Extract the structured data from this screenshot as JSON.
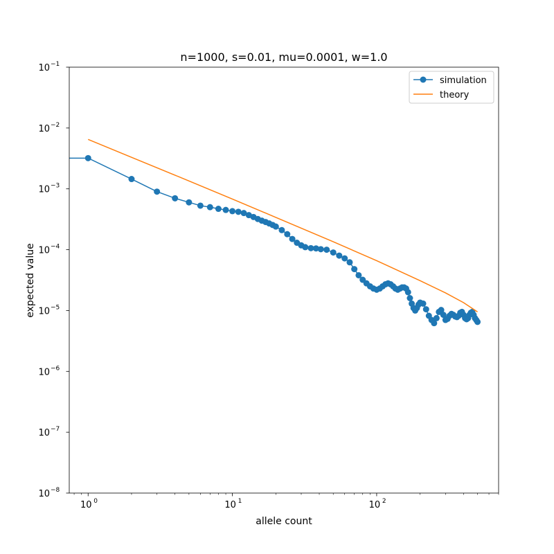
{
  "chart_data": {
    "type": "line",
    "title": "n=1000, s=0.01, mu=0.0001, w=1.0",
    "xlabel": "allele count",
    "ylabel": "expected value",
    "xscale": "log",
    "yscale": "log",
    "xlim": [
      0.74,
      700
    ],
    "ylim": [
      1e-08,
      0.1
    ],
    "xticks": [
      {
        "value": 1,
        "base": "10",
        "exp": "0"
      },
      {
        "value": 10,
        "base": "10",
        "exp": "1"
      },
      {
        "value": 100,
        "base": "10",
        "exp": "2"
      }
    ],
    "yticks": [
      {
        "value": 1e-08,
        "base": "10",
        "exp": "−8"
      },
      {
        "value": 1e-07,
        "base": "10",
        "exp": "−7"
      },
      {
        "value": 1e-06,
        "base": "10",
        "exp": "−6"
      },
      {
        "value": 1e-05,
        "base": "10",
        "exp": "−5"
      },
      {
        "value": 0.0001,
        "base": "10",
        "exp": "−4"
      },
      {
        "value": 0.001,
        "base": "10",
        "exp": "−3"
      },
      {
        "value": 0.01,
        "base": "10",
        "exp": "−2"
      },
      {
        "value": 0.1,
        "base": "10",
        "exp": "−1"
      }
    ],
    "grid": false,
    "legend_position": "top-right",
    "series": [
      {
        "name": "simulation",
        "color": "#1f77b4",
        "marker": "circle",
        "x_start": 0,
        "x": [
          1,
          2,
          3,
          4,
          5,
          6,
          7,
          8,
          9,
          10,
          11,
          12,
          13,
          14,
          15,
          16,
          17,
          18,
          19,
          20,
          22,
          24,
          26,
          28,
          30,
          32,
          35,
          38,
          41,
          45,
          50,
          55,
          60,
          65,
          70,
          75,
          80,
          85,
          90,
          95,
          100,
          105,
          110,
          115,
          120,
          125,
          130,
          135,
          140,
          145,
          150,
          155,
          160,
          165,
          170,
          175,
          180,
          185,
          190,
          195,
          200,
          210,
          220,
          230,
          240,
          250,
          260,
          270,
          280,
          290,
          300,
          310,
          320,
          330,
          340,
          350,
          360,
          370,
          380,
          390,
          400,
          410,
          420,
          430,
          440,
          450,
          460,
          470,
          480,
          490,
          500
        ],
        "y": [
          0.0032,
          0.00145,
          0.0009,
          0.0007,
          0.0006,
          0.00053,
          0.0005,
          0.00047,
          0.00045,
          0.00043,
          0.00042,
          0.0004,
          0.00037,
          0.000345,
          0.00032,
          0.0003,
          0.000285,
          0.00027,
          0.000255,
          0.00024,
          0.00021,
          0.00018,
          0.00015,
          0.00013,
          0.000118,
          0.00011,
          0.000106,
          0.000105,
          0.000102,
          0.0001,
          9e-05,
          8e-05,
          7.2e-05,
          6.2e-05,
          4.8e-05,
          3.8e-05,
          3.2e-05,
          2.8e-05,
          2.5e-05,
          2.3e-05,
          2.2e-05,
          2.3e-05,
          2.5e-05,
          2.7e-05,
          2.8e-05,
          2.7e-05,
          2.5e-05,
          2.3e-05,
          2.2e-05,
          2.3e-05,
          2.4e-05,
          2.4e-05,
          2.3e-05,
          2e-05,
          1.6e-05,
          1.3e-05,
          1.1e-05,
          1e-05,
          1.1e-05,
          1.25e-05,
          1.35e-05,
          1.3e-05,
          1.05e-05,
          8.2e-06,
          7e-06,
          6.2e-06,
          7.5e-06,
          9.5e-06,
          1.02e-05,
          8.5e-06,
          7e-06,
          7.3e-06,
          8.2e-06,
          8.8e-06,
          8.5e-06,
          8e-06,
          7.8e-06,
          8.2e-06,
          9.2e-06,
          9.5e-06,
          8.5e-06,
          7.5e-06,
          7.2e-06,
          7.5e-06,
          8.5e-06,
          9.2e-06,
          9.5e-06,
          8.5e-06,
          7.5e-06,
          7e-06,
          6.5e-06
        ]
      },
      {
        "name": "theory",
        "color": "#ff7f0e",
        "marker": "none",
        "x": [
          1,
          2,
          5,
          10,
          20,
          50,
          100,
          200,
          300,
          400,
          500
        ],
        "y": [
          0.0065,
          0.0033,
          0.00135,
          0.00068,
          0.00034,
          0.000135,
          6.6e-05,
          3.1e-05,
          1.95e-05,
          1.35e-05,
          9.5e-06
        ]
      }
    ]
  }
}
